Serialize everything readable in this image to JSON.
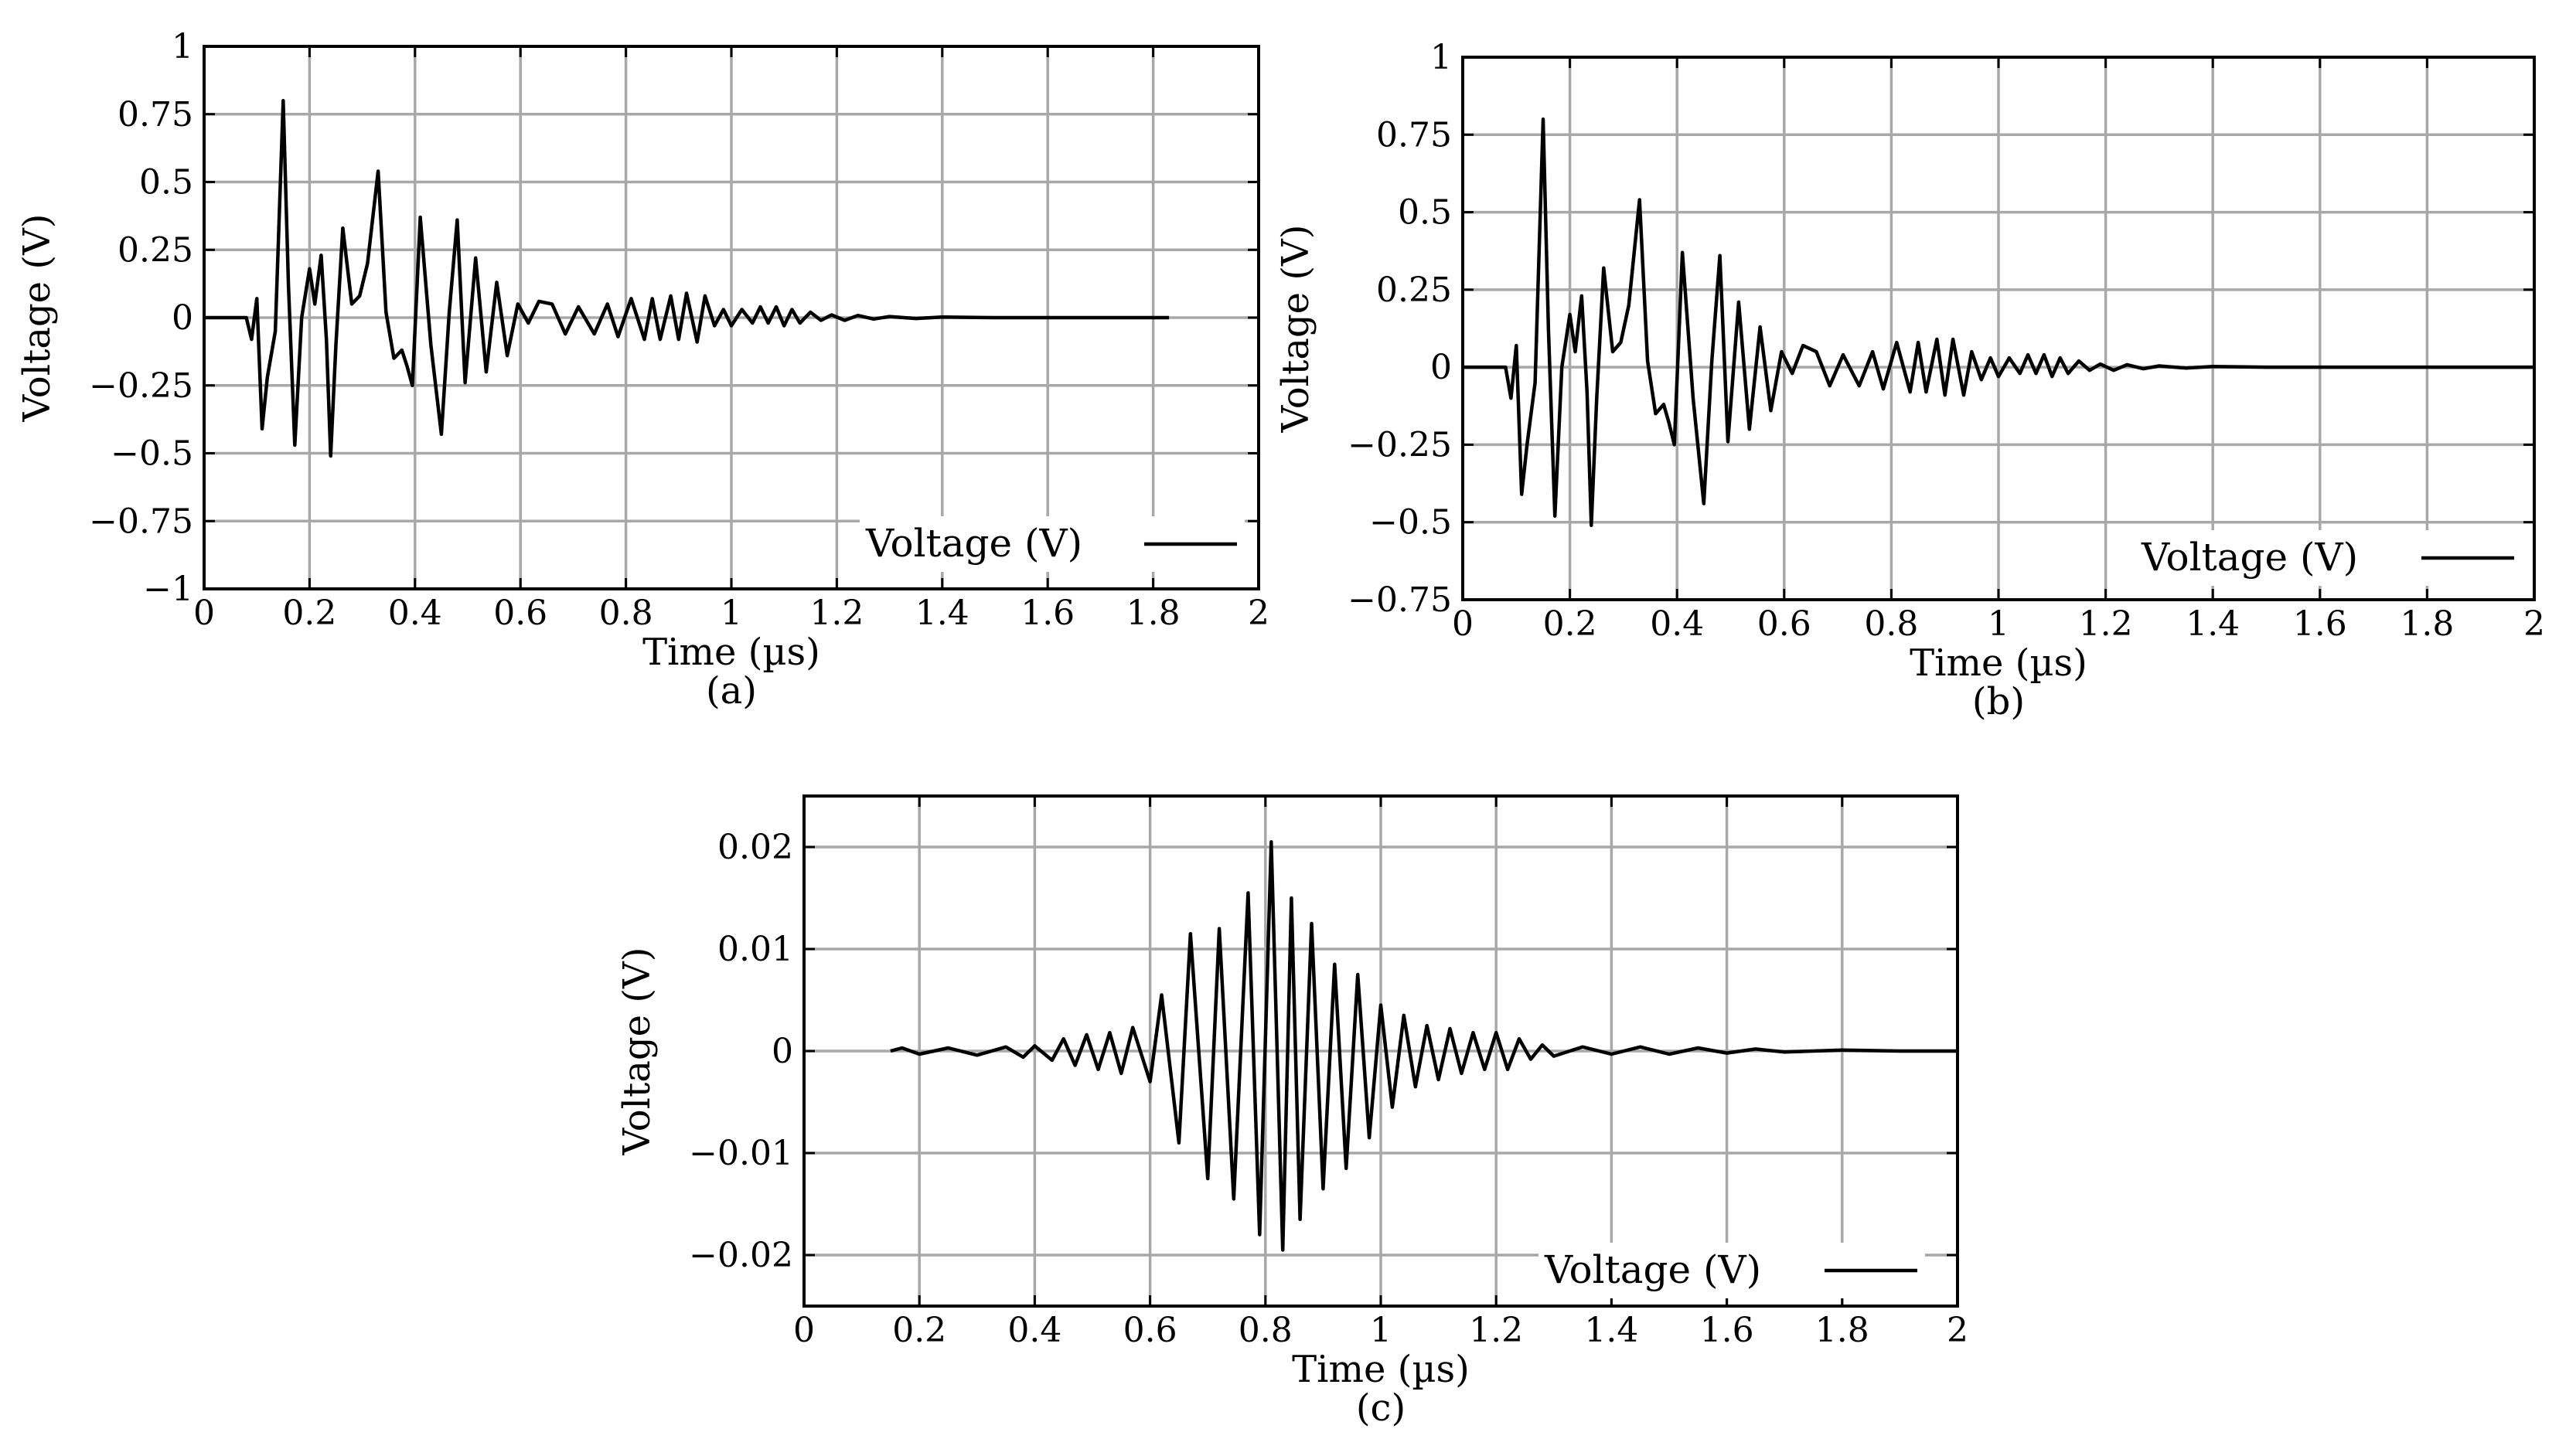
{
  "chart_data": [
    {
      "id": "a",
      "type": "line",
      "caption": "(a)",
      "xlabel": "Time (µs)",
      "ylabel": "Voltage (V)",
      "xlim": [
        0,
        2
      ],
      "ylim": [
        -1,
        1
      ],
      "xticks": [
        0,
        0.2,
        0.4,
        0.6,
        0.8,
        1,
        1.2,
        1.4,
        1.6,
        1.8,
        2
      ],
      "xtick_labels": [
        "0",
        "0.2",
        "0.4",
        "0.6",
        "0.8",
        "1",
        "1.2",
        "1.4",
        "1.6",
        "1.8",
        "2"
      ],
      "yticks": [
        1,
        0.75,
        0.5,
        0.25,
        0,
        -0.25,
        -0.5,
        -0.75,
        -1
      ],
      "ytick_labels": [
        "1",
        "0.75",
        "0.5",
        "0.25",
        "0",
        "−0.25",
        "−0.5",
        "−0.75",
        "−1"
      ],
      "grid": true,
      "legend_position": "lower-right",
      "series": [
        {
          "name": "Voltage (V)",
          "x": [
            0,
            0.08,
            0.085,
            0.09,
            0.1,
            0.11,
            0.12,
            0.135,
            0.15,
            0.16,
            0.172,
            0.185,
            0.2,
            0.21,
            0.222,
            0.232,
            0.24,
            0.25,
            0.263,
            0.28,
            0.295,
            0.31,
            0.33,
            0.345,
            0.36,
            0.375,
            0.385,
            0.395,
            0.41,
            0.43,
            0.45,
            0.465,
            0.48,
            0.495,
            0.515,
            0.535,
            0.555,
            0.575,
            0.595,
            0.615,
            0.635,
            0.66,
            0.685,
            0.71,
            0.74,
            0.765,
            0.785,
            0.81,
            0.835,
            0.85,
            0.865,
            0.885,
            0.9,
            0.915,
            0.935,
            0.95,
            0.968,
            0.985,
            1.0,
            1.02,
            1.04,
            1.055,
            1.07,
            1.085,
            1.1,
            1.115,
            1.13,
            1.15,
            1.17,
            1.19,
            1.215,
            1.24,
            1.27,
            1.3,
            1.35,
            1.4,
            1.5,
            1.6,
            1.7,
            1.8,
            1.83
          ],
          "y": [
            0,
            0,
            -0.04,
            -0.08,
            0.07,
            -0.41,
            -0.22,
            -0.05,
            0.8,
            0.12,
            -0.47,
            0.0,
            0.18,
            0.05,
            0.23,
            -0.08,
            -0.51,
            -0.1,
            0.33,
            0.05,
            0.08,
            0.2,
            0.54,
            0.02,
            -0.15,
            -0.12,
            -0.18,
            -0.25,
            0.37,
            -0.1,
            -0.43,
            0.02,
            0.36,
            -0.24,
            0.22,
            -0.2,
            0.13,
            -0.14,
            0.05,
            -0.02,
            0.06,
            0.05,
            -0.06,
            0.04,
            -0.06,
            0.05,
            -0.07,
            0.07,
            -0.08,
            0.07,
            -0.08,
            0.08,
            -0.08,
            0.09,
            -0.09,
            0.08,
            -0.03,
            0.03,
            -0.03,
            0.03,
            -0.02,
            0.04,
            -0.02,
            0.04,
            -0.03,
            0.03,
            -0.02,
            0.02,
            -0.01,
            0.01,
            -0.01,
            0.008,
            -0.005,
            0.004,
            -0.003,
            0.002,
            0,
            0,
            0,
            0,
            0
          ]
        }
      ]
    },
    {
      "id": "b",
      "type": "line",
      "caption": "(b)",
      "xlabel": "Time (µs)",
      "ylabel": "Voltage (V)",
      "xlim": [
        0,
        2
      ],
      "ylim": [
        -0.75,
        1
      ],
      "xticks": [
        0,
        0.2,
        0.4,
        0.6,
        0.8,
        1,
        1.2,
        1.4,
        1.6,
        1.8,
        2
      ],
      "xtick_labels": [
        "0",
        "0.2",
        "0.4",
        "0.6",
        "0.8",
        "1",
        "1.2",
        "1.4",
        "1.6",
        "1.8",
        "2"
      ],
      "yticks": [
        1,
        0.75,
        0.5,
        0.25,
        0,
        -0.25,
        -0.5,
        -0.75
      ],
      "ytick_labels": [
        "1",
        "0.75",
        "0.5",
        "0.25",
        "0",
        "−0.25",
        "−0.5",
        "−0.75"
      ],
      "grid": true,
      "legend_position": "lower-right",
      "series": [
        {
          "name": "Voltage (V)",
          "x": [
            0,
            0.08,
            0.09,
            0.1,
            0.11,
            0.12,
            0.135,
            0.15,
            0.16,
            0.172,
            0.185,
            0.2,
            0.21,
            0.222,
            0.232,
            0.24,
            0.25,
            0.263,
            0.28,
            0.295,
            0.31,
            0.33,
            0.345,
            0.36,
            0.375,
            0.385,
            0.395,
            0.41,
            0.43,
            0.45,
            0.465,
            0.48,
            0.495,
            0.515,
            0.535,
            0.555,
            0.575,
            0.595,
            0.615,
            0.635,
            0.66,
            0.685,
            0.71,
            0.74,
            0.765,
            0.785,
            0.81,
            0.835,
            0.85,
            0.865,
            0.885,
            0.9,
            0.915,
            0.935,
            0.95,
            0.968,
            0.985,
            1.0,
            1.02,
            1.04,
            1.055,
            1.07,
            1.085,
            1.1,
            1.115,
            1.13,
            1.15,
            1.17,
            1.19,
            1.215,
            1.24,
            1.27,
            1.3,
            1.35,
            1.4,
            1.5,
            1.6,
            1.7,
            1.8,
            1.9,
            2.0
          ],
          "y": [
            0,
            0,
            -0.1,
            0.07,
            -0.41,
            -0.25,
            -0.05,
            0.8,
            0.12,
            -0.48,
            0.0,
            0.17,
            0.05,
            0.23,
            -0.08,
            -0.51,
            -0.1,
            0.32,
            0.05,
            0.08,
            0.2,
            0.54,
            0.02,
            -0.15,
            -0.12,
            -0.18,
            -0.25,
            0.37,
            -0.1,
            -0.44,
            0.02,
            0.36,
            -0.24,
            0.21,
            -0.2,
            0.13,
            -0.14,
            0.05,
            -0.02,
            0.07,
            0.05,
            -0.06,
            0.04,
            -0.06,
            0.05,
            -0.07,
            0.08,
            -0.08,
            0.08,
            -0.08,
            0.09,
            -0.09,
            0.09,
            -0.09,
            0.05,
            -0.04,
            0.03,
            -0.03,
            0.03,
            -0.02,
            0.04,
            -0.02,
            0.04,
            -0.03,
            0.03,
            -0.02,
            0.02,
            -0.01,
            0.01,
            -0.01,
            0.008,
            -0.005,
            0.004,
            -0.003,
            0.002,
            0,
            0,
            0,
            0,
            0,
            0
          ]
        }
      ]
    },
    {
      "id": "c",
      "type": "line",
      "caption": "(c)",
      "xlabel": "Time (µs)",
      "ylabel": "Voltage (V)",
      "xlim": [
        0,
        2
      ],
      "ylim": [
        -0.025,
        0.025
      ],
      "xticks": [
        0,
        0.2,
        0.4,
        0.6,
        0.8,
        1,
        1.2,
        1.4,
        1.6,
        1.8,
        2
      ],
      "xtick_labels": [
        "0",
        "0.2",
        "0.4",
        "0.6",
        "0.8",
        "1",
        "1.2",
        "1.4",
        "1.6",
        "1.8",
        "2"
      ],
      "yticks": [
        0.02,
        0.01,
        0,
        -0.01,
        -0.02
      ],
      "ytick_labels": [
        "0.02",
        "0.01",
        "0",
        "−0.01",
        "−0.02"
      ],
      "grid": true,
      "legend_position": "lower-right",
      "series": [
        {
          "name": "Voltage (V)",
          "x": [
            0.15,
            0.17,
            0.2,
            0.25,
            0.3,
            0.35,
            0.38,
            0.4,
            0.43,
            0.45,
            0.47,
            0.49,
            0.51,
            0.53,
            0.55,
            0.57,
            0.6,
            0.62,
            0.65,
            0.67,
            0.7,
            0.72,
            0.745,
            0.77,
            0.79,
            0.81,
            0.83,
            0.845,
            0.86,
            0.88,
            0.9,
            0.92,
            0.94,
            0.96,
            0.98,
            1.0,
            1.02,
            1.04,
            1.06,
            1.08,
            1.1,
            1.12,
            1.14,
            1.16,
            1.18,
            1.2,
            1.22,
            1.24,
            1.26,
            1.28,
            1.3,
            1.35,
            1.4,
            1.45,
            1.5,
            1.55,
            1.6,
            1.65,
            1.7,
            1.8,
            1.9,
            2.0
          ],
          "y": [
            0,
            0.0003,
            -0.0003,
            0.0003,
            -0.0004,
            0.0004,
            -0.0006,
            0.0005,
            -0.0009,
            0.0012,
            -0.0014,
            0.0016,
            -0.0018,
            0.0018,
            -0.0022,
            0.0023,
            -0.003,
            0.0055,
            -0.009,
            0.0115,
            -0.0125,
            0.012,
            -0.0145,
            0.0155,
            -0.018,
            0.0205,
            -0.0195,
            0.015,
            -0.0165,
            0.0125,
            -0.0135,
            0.0085,
            -0.0115,
            0.0075,
            -0.0085,
            0.0045,
            -0.0055,
            0.0035,
            -0.0035,
            0.0025,
            -0.0028,
            0.0022,
            -0.0022,
            0.0018,
            -0.0018,
            0.0018,
            -0.0018,
            0.0012,
            -0.0008,
            0.0006,
            -0.0005,
            0.0004,
            -0.0003,
            0.0004,
            -0.0003,
            0.0003,
            -0.0002,
            0.0002,
            -0.0001,
            0.0001,
            0,
            0
          ]
        }
      ]
    }
  ]
}
